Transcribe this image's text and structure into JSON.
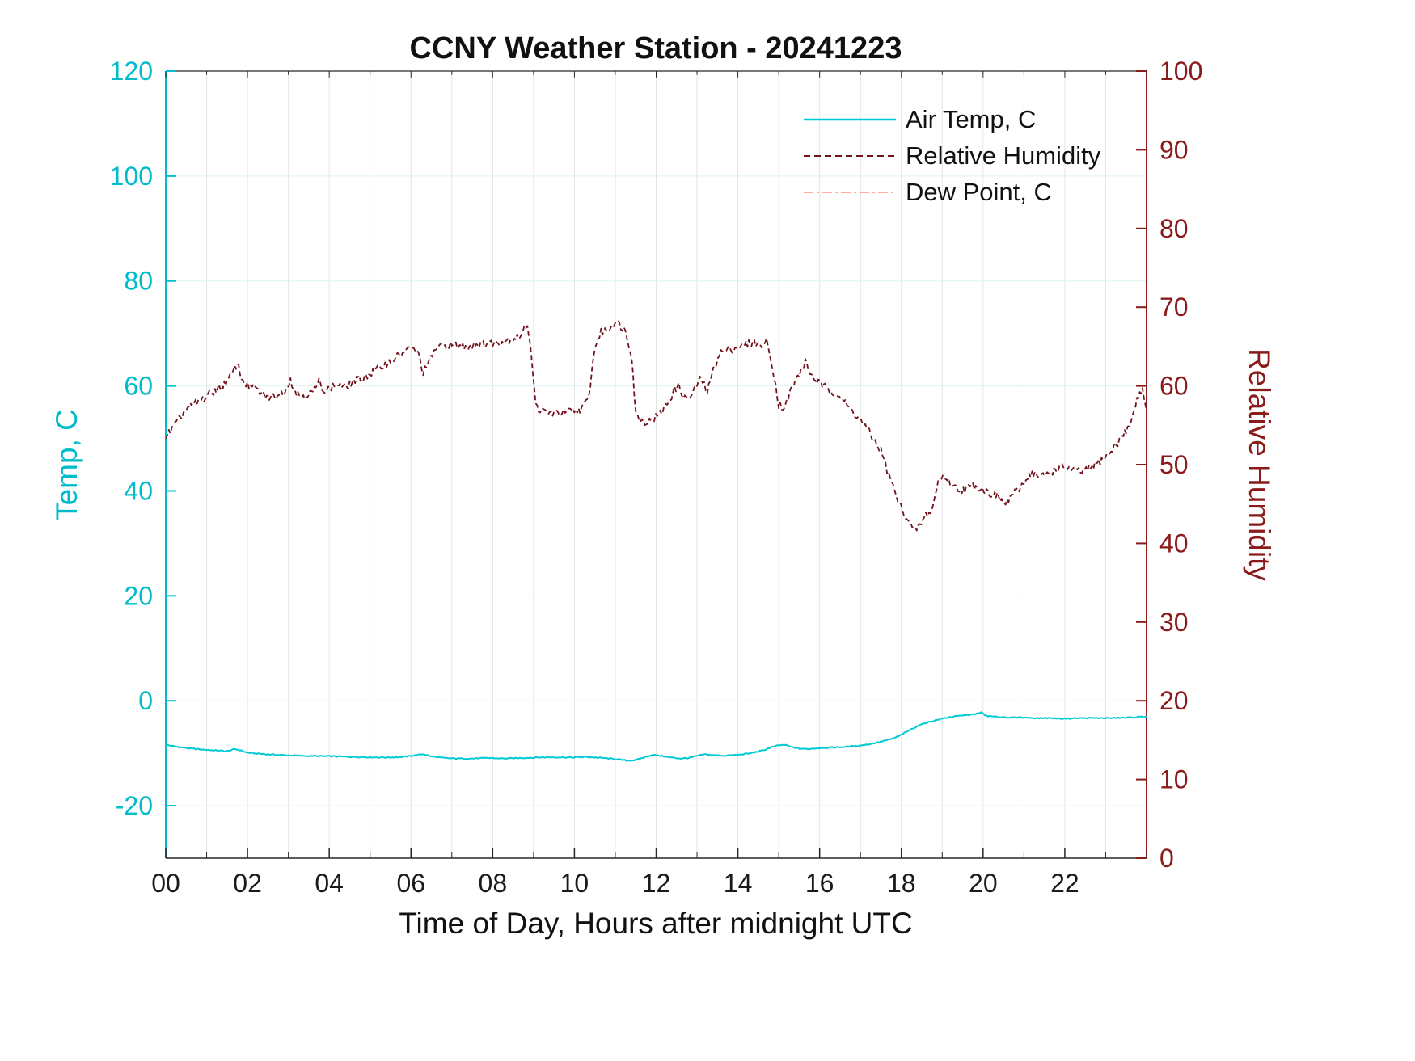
{
  "chart_data": {
    "type": "line",
    "title": "CCNY Weather Station - 20241223",
    "xlabel": "Time of Day, Hours after midnight UTC",
    "ylabel_left": "Temp, C",
    "ylabel_right": "Relative Humidity",
    "x_range": [
      0,
      24
    ],
    "x_minor_step": 1,
    "x_ticks": {
      "values": [
        0,
        2,
        4,
        6,
        8,
        10,
        12,
        14,
        16,
        18,
        20,
        22
      ],
      "labels": [
        "00",
        "02",
        "04",
        "06",
        "08",
        "10",
        "12",
        "14",
        "16",
        "18",
        "20",
        "22"
      ]
    },
    "left_axis": {
      "range": [
        -30,
        120
      ],
      "ticks": [
        -20,
        0,
        20,
        40,
        60,
        80,
        100,
        120
      ],
      "color": "#00BCCB"
    },
    "right_axis": {
      "range": [
        0,
        100
      ],
      "ticks": [
        0,
        10,
        20,
        30,
        40,
        50,
        60,
        70,
        80,
        90,
        100
      ],
      "color": "#8B1A1A"
    },
    "grid": {
      "vertical_color": "#E4E4E4",
      "horizontal_color": "#DDF2F6"
    },
    "legend": [
      {
        "label": "Air Temp, C",
        "color": "#00CAD6",
        "dash": "none",
        "width": 2.5
      },
      {
        "label": "Relative Humidity",
        "color": "#72121A",
        "dash": "8 5",
        "width": 2
      },
      {
        "label": "Dew Point, C",
        "color": "#FF7D5C",
        "dash": "12 4 3 4",
        "width": 1.3
      }
    ],
    "series": [
      {
        "id": "air-temp",
        "name": "Air Temp, C",
        "axis": "left",
        "color": "#00CAD6",
        "dash": "none",
        "width": 2,
        "jitter": 0.1,
        "points": [
          [
            0,
            -8.4
          ],
          [
            0.3,
            -8.8
          ],
          [
            0.6,
            -9.1
          ],
          [
            0.9,
            -9.3
          ],
          [
            1.2,
            -9.45
          ],
          [
            1.5,
            -9.6
          ],
          [
            1.7,
            -9.2
          ],
          [
            1.85,
            -9.5
          ],
          [
            2,
            -9.9
          ],
          [
            2.3,
            -10.1
          ],
          [
            2.6,
            -10.25
          ],
          [
            3,
            -10.4
          ],
          [
            3.4,
            -10.5
          ],
          [
            3.8,
            -10.55
          ],
          [
            4.2,
            -10.6
          ],
          [
            4.6,
            -10.7
          ],
          [
            5,
            -10.75
          ],
          [
            5.4,
            -10.8
          ],
          [
            5.8,
            -10.7
          ],
          [
            6.1,
            -10.4
          ],
          [
            6.3,
            -10.15
          ],
          [
            6.5,
            -10.6
          ],
          [
            6.8,
            -10.9
          ],
          [
            7.1,
            -11
          ],
          [
            7.5,
            -11
          ],
          [
            7.9,
            -10.9
          ],
          [
            8.3,
            -11
          ],
          [
            8.7,
            -10.9
          ],
          [
            9.1,
            -10.8
          ],
          [
            9.5,
            -10.75
          ],
          [
            9.9,
            -10.8
          ],
          [
            10.3,
            -10.7
          ],
          [
            10.7,
            -10.9
          ],
          [
            11,
            -11.1
          ],
          [
            11.3,
            -11.4
          ],
          [
            11.5,
            -11.3
          ],
          [
            11.7,
            -10.8
          ],
          [
            11.9,
            -10.3
          ],
          [
            12.1,
            -10.45
          ],
          [
            12.35,
            -10.8
          ],
          [
            12.6,
            -11
          ],
          [
            12.8,
            -10.9
          ],
          [
            13,
            -10.5
          ],
          [
            13.2,
            -10.2
          ],
          [
            13.45,
            -10.4
          ],
          [
            13.7,
            -10.45
          ],
          [
            14,
            -10.3
          ],
          [
            14.3,
            -10
          ],
          [
            14.6,
            -9.5
          ],
          [
            14.8,
            -8.9
          ],
          [
            15,
            -8.5
          ],
          [
            15.15,
            -8.4
          ],
          [
            15.3,
            -8.8
          ],
          [
            15.5,
            -9.1
          ],
          [
            15.7,
            -9.2
          ],
          [
            16,
            -9
          ],
          [
            16.3,
            -8.9
          ],
          [
            16.6,
            -8.8
          ],
          [
            16.9,
            -8.6
          ],
          [
            17.2,
            -8.3
          ],
          [
            17.5,
            -7.8
          ],
          [
            17.8,
            -7.2
          ],
          [
            18,
            -6.5
          ],
          [
            18.2,
            -5.6
          ],
          [
            18.4,
            -4.8
          ],
          [
            18.6,
            -4.2
          ],
          [
            18.8,
            -3.8
          ],
          [
            19,
            -3.4
          ],
          [
            19.2,
            -3.1
          ],
          [
            19.4,
            -2.9
          ],
          [
            19.6,
            -2.7
          ],
          [
            19.8,
            -2.6
          ],
          [
            19.95,
            -2.2
          ],
          [
            20.05,
            -2.8
          ],
          [
            20.2,
            -3
          ],
          [
            20.4,
            -3.1
          ],
          [
            20.7,
            -3.2
          ],
          [
            21,
            -3.2
          ],
          [
            21.3,
            -3.3
          ],
          [
            21.6,
            -3.3
          ],
          [
            22,
            -3.4
          ],
          [
            22.4,
            -3.3
          ],
          [
            22.8,
            -3.3
          ],
          [
            23.2,
            -3.3
          ],
          [
            23.6,
            -3.2
          ],
          [
            24,
            -3
          ]
        ]
      },
      {
        "id": "relative-humidity",
        "name": "Relative Humidity",
        "axis": "right",
        "color": "#72121A",
        "dash": "6 4",
        "width": 1.8,
        "jitter": 0.5,
        "points": [
          [
            0,
            53.5
          ],
          [
            0.15,
            54.5
          ],
          [
            0.3,
            55.5
          ],
          [
            0.5,
            57
          ],
          [
            0.7,
            57.8
          ],
          [
            0.9,
            58.3
          ],
          [
            1.1,
            59
          ],
          [
            1.3,
            59.8
          ],
          [
            1.5,
            60.5
          ],
          [
            1.65,
            61.8
          ],
          [
            1.75,
            63
          ],
          [
            1.85,
            61
          ],
          [
            2,
            60
          ],
          [
            2.15,
            59.8
          ],
          [
            2.3,
            59.2
          ],
          [
            2.5,
            58.5
          ],
          [
            2.7,
            58.8
          ],
          [
            2.9,
            59.3
          ],
          [
            3.05,
            60.8
          ],
          [
            3.2,
            59
          ],
          [
            3.4,
            58.8
          ],
          [
            3.6,
            59.2
          ],
          [
            3.75,
            60.5
          ],
          [
            3.9,
            59.4
          ],
          [
            4.05,
            59.8
          ],
          [
            4.2,
            60.2
          ],
          [
            4.4,
            59.8
          ],
          [
            4.6,
            60.6
          ],
          [
            4.8,
            61
          ],
          [
            5,
            61.5
          ],
          [
            5.2,
            62.2
          ],
          [
            5.4,
            62.8
          ],
          [
            5.6,
            63.5
          ],
          [
            5.8,
            64.2
          ],
          [
            6,
            64.8
          ],
          [
            6.15,
            64.5
          ],
          [
            6.3,
            61.8
          ],
          [
            6.45,
            63
          ],
          [
            6.6,
            64.8
          ],
          [
            6.8,
            65
          ],
          [
            7,
            65.2
          ],
          [
            7.3,
            65
          ],
          [
            7.6,
            65.3
          ],
          [
            7.9,
            65.4
          ],
          [
            8.2,
            65.6
          ],
          [
            8.5,
            66
          ],
          [
            8.7,
            66.4
          ],
          [
            8.85,
            68
          ],
          [
            8.95,
            64
          ],
          [
            9.05,
            57.5
          ],
          [
            9.2,
            56.8
          ],
          [
            9.4,
            56.6
          ],
          [
            9.6,
            56.5
          ],
          [
            9.8,
            56.7
          ],
          [
            10,
            56.8
          ],
          [
            10.2,
            57.2
          ],
          [
            10.35,
            58.5
          ],
          [
            10.5,
            65
          ],
          [
            10.65,
            66.8
          ],
          [
            10.85,
            67.3
          ],
          [
            11,
            68.3
          ],
          [
            11.1,
            67.8
          ],
          [
            11.25,
            67
          ],
          [
            11.4,
            64
          ],
          [
            11.5,
            56.5
          ],
          [
            11.65,
            55.6
          ],
          [
            11.8,
            55.4
          ],
          [
            11.95,
            55.9
          ],
          [
            12.1,
            56.5
          ],
          [
            12.3,
            58
          ],
          [
            12.45,
            59.5
          ],
          [
            12.55,
            60
          ],
          [
            12.7,
            58.4
          ],
          [
            12.85,
            58.6
          ],
          [
            13,
            60.2
          ],
          [
            13.1,
            61
          ],
          [
            13.25,
            59.2
          ],
          [
            13.4,
            62
          ],
          [
            13.55,
            64.2
          ],
          [
            13.75,
            64.6
          ],
          [
            14,
            64.9
          ],
          [
            14.2,
            65.3
          ],
          [
            14.4,
            65.6
          ],
          [
            14.55,
            65.1
          ],
          [
            14.7,
            65.6
          ],
          [
            14.85,
            62.5
          ],
          [
            15,
            57.6
          ],
          [
            15.15,
            57.2
          ],
          [
            15.3,
            59.5
          ],
          [
            15.5,
            61.5
          ],
          [
            15.65,
            63
          ],
          [
            15.8,
            61.3
          ],
          [
            16,
            60.3
          ],
          [
            16.2,
            59.6
          ],
          [
            16.45,
            59
          ],
          [
            16.7,
            57.3
          ],
          [
            16.95,
            56
          ],
          [
            17.15,
            54.6
          ],
          [
            17.35,
            53
          ],
          [
            17.5,
            51.8
          ],
          [
            17.65,
            49.3
          ],
          [
            17.8,
            47.2
          ],
          [
            17.95,
            45
          ],
          [
            18.1,
            43.6
          ],
          [
            18.3,
            41.6
          ],
          [
            18.45,
            42.2
          ],
          [
            18.6,
            43.6
          ],
          [
            18.75,
            44.2
          ],
          [
            18.9,
            47.8
          ],
          [
            19.05,
            48.6
          ],
          [
            19.2,
            47.6
          ],
          [
            19.35,
            47
          ],
          [
            19.55,
            46.8
          ],
          [
            19.75,
            47.4
          ],
          [
            19.95,
            47
          ],
          [
            20.15,
            46.4
          ],
          [
            20.35,
            46
          ],
          [
            20.55,
            44.9
          ],
          [
            20.7,
            46.2
          ],
          [
            20.85,
            46.6
          ],
          [
            21.05,
            48.2
          ],
          [
            21.2,
            49
          ],
          [
            21.4,
            48.4
          ],
          [
            21.6,
            48.9
          ],
          [
            21.8,
            49.4
          ],
          [
            22,
            49.8
          ],
          [
            22.2,
            49.3
          ],
          [
            22.45,
            49.1
          ],
          [
            22.7,
            49.8
          ],
          [
            22.9,
            50.6
          ],
          [
            23.1,
            51.5
          ],
          [
            23.3,
            52.8
          ],
          [
            23.5,
            54.2
          ],
          [
            23.65,
            56
          ],
          [
            23.8,
            58.8
          ],
          [
            23.9,
            59.8
          ],
          [
            23.97,
            57.5
          ],
          [
            24,
            56.8
          ]
        ]
      },
      {
        "id": "dew-point",
        "name": "Dew Point, C",
        "axis": "right",
        "color": "#FF7D5C",
        "dash": "12 4 3 4",
        "width": 1.3,
        "jitter": 0,
        "points": []
      }
    ]
  }
}
